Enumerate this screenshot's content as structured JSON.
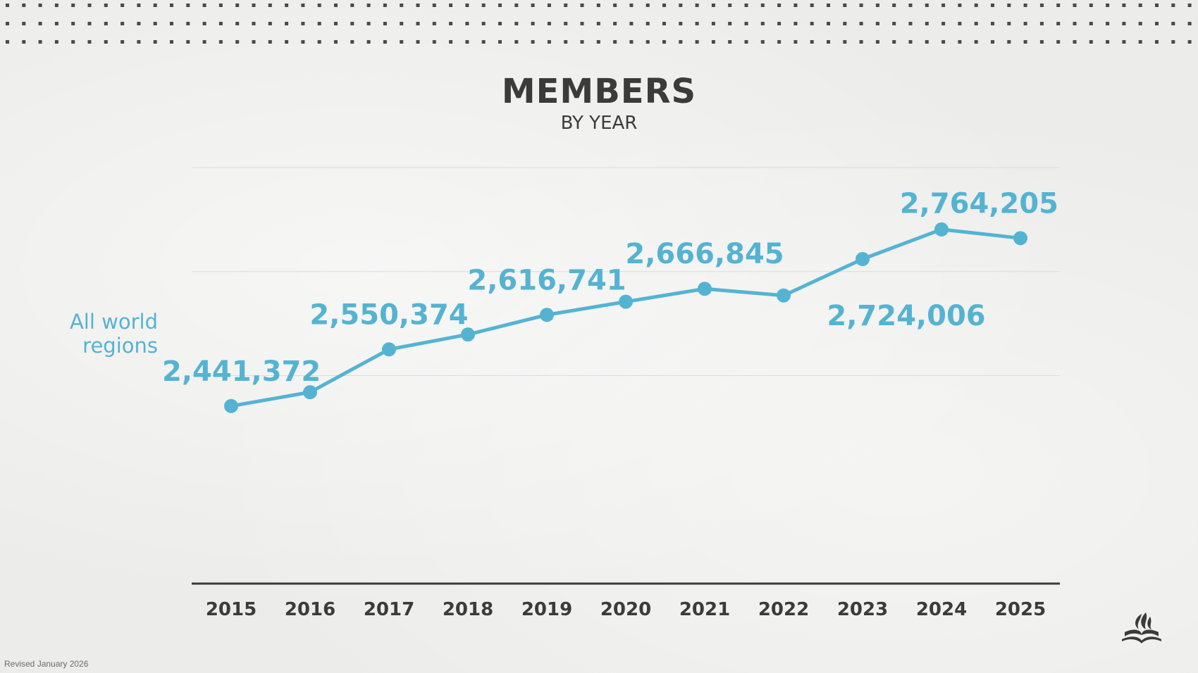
{
  "colors": {
    "series": "#55b3d2",
    "text_dark": "#3b3b3b",
    "grid": "#dcdcdc",
    "axis": "#3b3b3b"
  },
  "footnote": "Revised January 2026",
  "logo_icon": "flame-bible-logo-icon",
  "chart_data": {
    "type": "line",
    "title": "MEMBERS",
    "subtitle": "BY YEAR",
    "xlabel": "",
    "ylabel": "",
    "categories": [
      "2015",
      "2016",
      "2017",
      "2018",
      "2019",
      "2020",
      "2021",
      "2022",
      "2023",
      "2024",
      "2025"
    ],
    "series": [
      {
        "name": "All world regions",
        "values": [
          2441372,
          2468000,
          2550374,
          2579000,
          2616741,
          2642000,
          2666845,
          2654000,
          2724006,
          2781000,
          2764205
        ]
      }
    ],
    "data_labels": [
      {
        "index": 0,
        "text": "2,441,372"
      },
      {
        "index": 2,
        "text": "2,550,374"
      },
      {
        "index": 4,
        "text": "2,616,741"
      },
      {
        "index": 6,
        "text": "2,666,845"
      },
      {
        "index": 8,
        "text": "2,724,006"
      },
      {
        "index": 10,
        "text": "2,764,205"
      }
    ],
    "ylim": [
      2100000,
      2900000
    ],
    "grid": true,
    "legend": "none"
  }
}
